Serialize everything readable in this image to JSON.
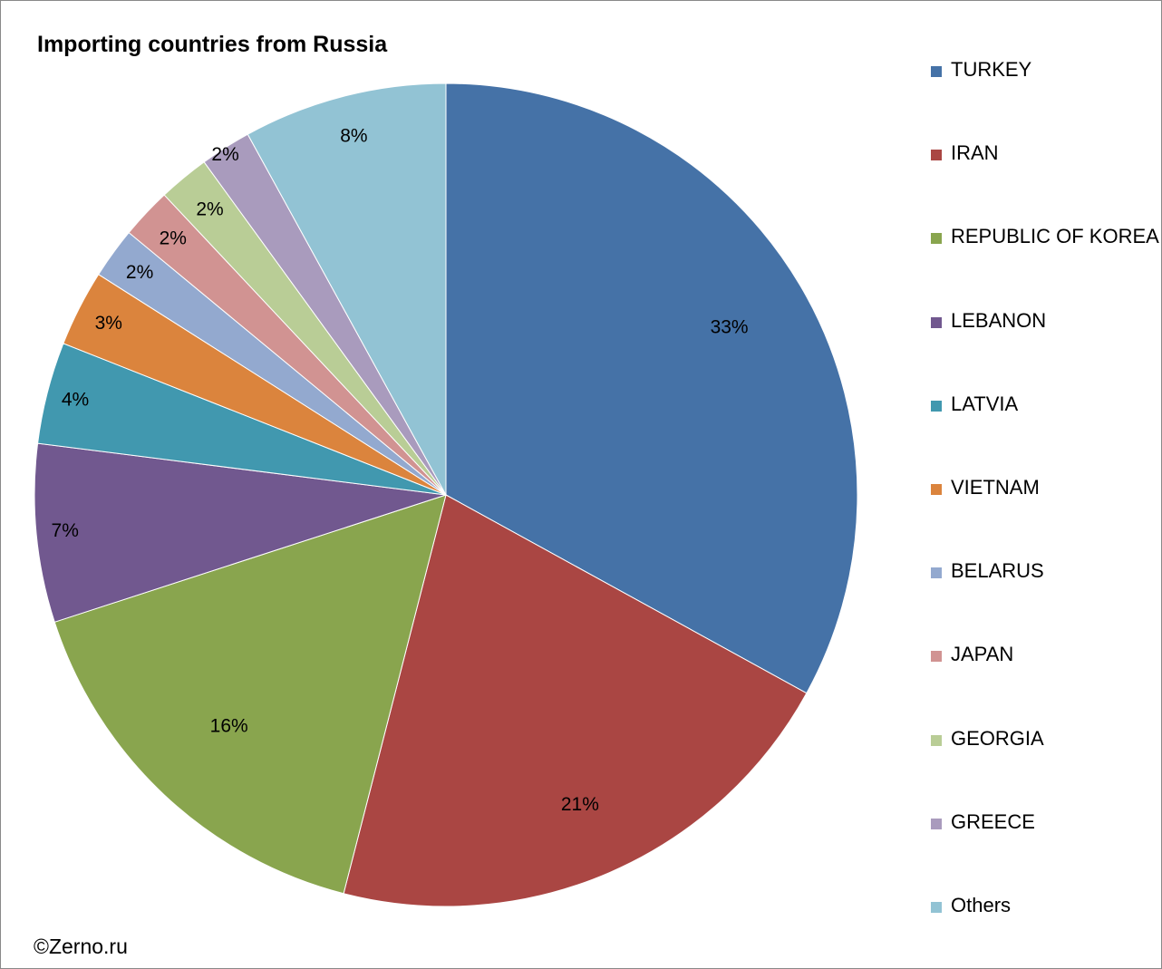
{
  "chart_data": {
    "type": "pie",
    "title": "Importing countries from Russia",
    "categories": [
      "TURKEY",
      "IRAN",
      "REPUBLIC OF KOREA",
      "LEBANON",
      "LATVIA",
      "VIETNAM",
      "BELARUS",
      "JAPAN",
      "GEORGIA",
      "GREECE",
      "Others"
    ],
    "values": [
      33,
      21,
      16,
      7,
      4,
      3,
      2,
      2,
      2,
      2,
      8
    ],
    "data_labels": [
      "33%",
      "21%",
      "16%",
      "7%",
      "4%",
      "3%",
      "2%",
      "2%",
      "2%",
      "2%",
      "8%"
    ],
    "colors": [
      "#4572A7",
      "#AA4643",
      "#89A54E",
      "#71588F",
      "#4198AF",
      "#DB843D",
      "#93A9CF",
      "#D19392",
      "#B9CD96",
      "#A99BBD",
      "#92C3D4"
    ],
    "legend_position": "right",
    "start_angle": "12 o'clock",
    "direction": "clockwise"
  },
  "footer": {
    "copyright": "©Zerno.ru"
  }
}
